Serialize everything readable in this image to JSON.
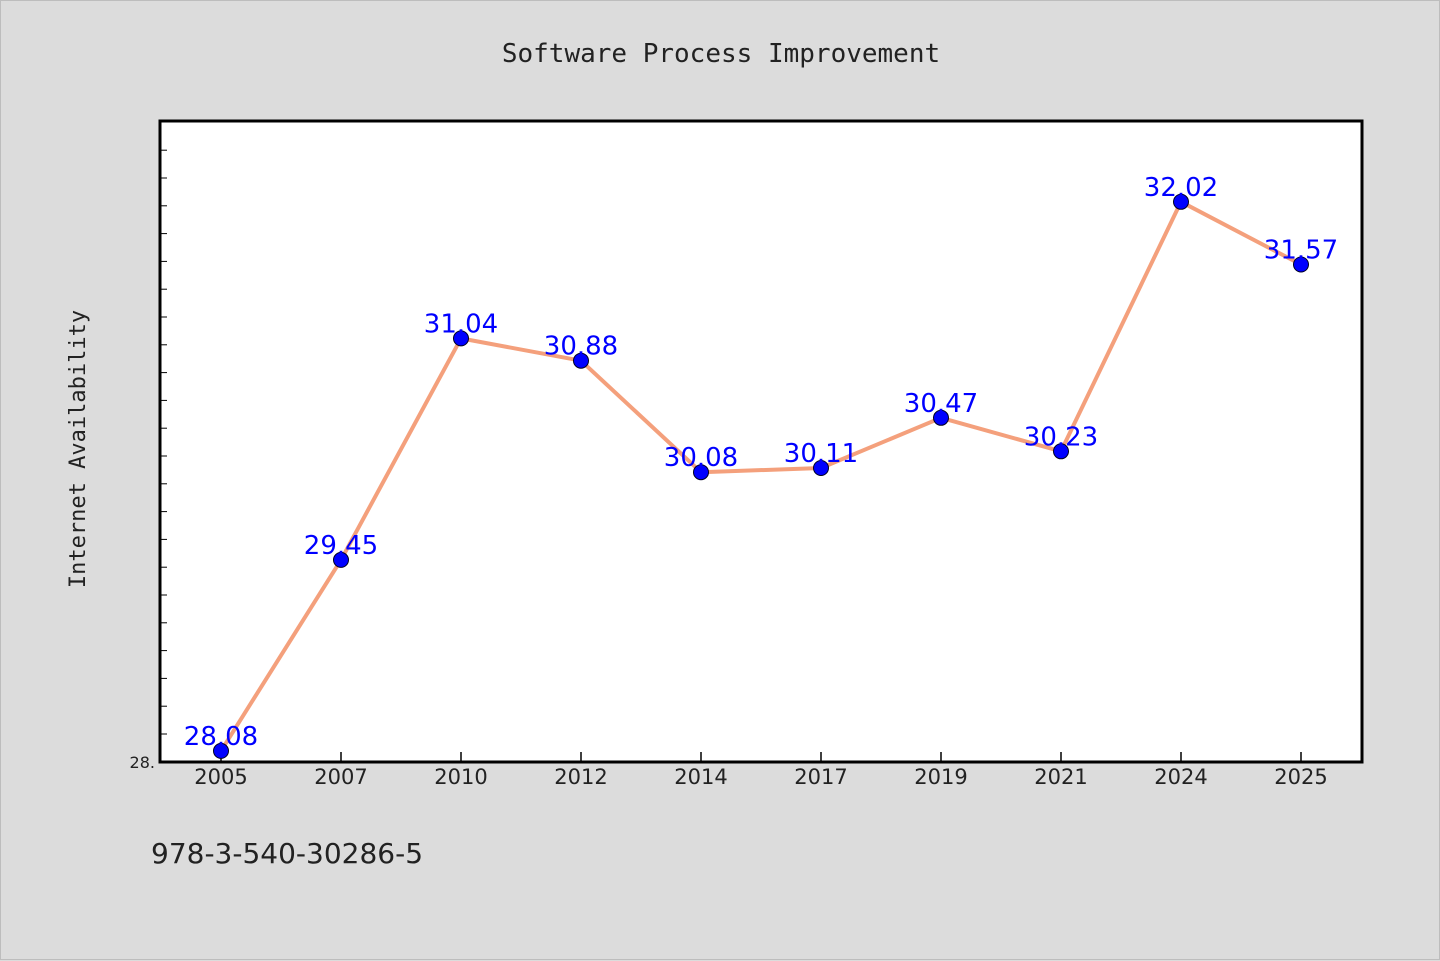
{
  "colors": {
    "background": "#dcdcdc",
    "plot_background": "#ffffff",
    "line": "#f4a07c",
    "marker": "#0000ff",
    "data_label": "#0000ff",
    "text": "#222222"
  },
  "chart_data": {
    "type": "line",
    "title": "Software Process Improvement",
    "xlabel": "",
    "ylabel": "Internet Availability",
    "categories": [
      "2005",
      "2007",
      "2010",
      "2012",
      "2014",
      "2017",
      "2019",
      "2021",
      "2024",
      "2025"
    ],
    "series": [
      {
        "values": [
          28.08,
          29.45,
          31.04,
          30.88,
          30.08,
          30.11,
          30.47,
          30.23,
          32.02,
          31.57
        ],
        "labels": [
          "28.08",
          "29.45",
          "31.04",
          "30.88",
          "30.08",
          "30.11",
          "30.47",
          "30.23",
          "32.02",
          "31.57"
        ],
        "marker": "circle"
      }
    ],
    "ylim": [
      28.0,
      32.6
    ],
    "y_tick_labels": [
      "28."
    ],
    "grid": false,
    "legend": "none"
  },
  "footer": {
    "identifier": "978-3-540-30286-5"
  }
}
